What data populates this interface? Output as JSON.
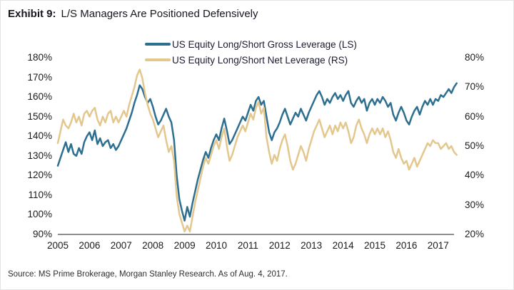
{
  "title": {
    "exhibit": "Exhibit 9:",
    "text": "L/S Managers Are Positioned Defensively"
  },
  "source": {
    "text": "Source: MS Prime Brokerage, Morgan Stanley Research. As of Aug. 4, 2017."
  },
  "colors": {
    "axis_line": "#4a4a4a",
    "gross_line": "#2d6f91",
    "net_line": "#e3c78d"
  },
  "chart_data": {
    "type": "line",
    "title": "L/S Managers Are Positioned Defensively",
    "x_start_year": 2005,
    "points_per_year": 12,
    "x_tick_labels": [
      "2005",
      "2006",
      "2007",
      "2008",
      "2009",
      "2010",
      "2011",
      "2012",
      "2013",
      "2014",
      "2015",
      "2016",
      "2017"
    ],
    "left_axis": {
      "label": "",
      "min": 90,
      "max": 180,
      "ticks": [
        "180%",
        "170%",
        "160%",
        "150%",
        "140%",
        "130%",
        "120%",
        "110%",
        "100%",
        "90%"
      ]
    },
    "right_axis": {
      "label": "",
      "min": 20,
      "max": 80,
      "ticks": [
        "80%",
        "70%",
        "60%",
        "50%",
        "40%",
        "30%",
        "20%"
      ]
    },
    "grid": "off",
    "legend_position": "top-center",
    "series": [
      {
        "name": "US Equity Long/Short Gross Leverage (LS)",
        "axis": "left",
        "color": "#2d6f91",
        "values": [
          125,
          129,
          133,
          137,
          132,
          136,
          131,
          130,
          134,
          131,
          137,
          140,
          142,
          138,
          143,
          136,
          139,
          135,
          137,
          138,
          134,
          136,
          133,
          135,
          138,
          141,
          144,
          148,
          152,
          157,
          161,
          166,
          164,
          160,
          157,
          159,
          155,
          150,
          146,
          148,
          151,
          154,
          150,
          147,
          138,
          120,
          108,
          102,
          97,
          104,
          99,
          106,
          112,
          118,
          123,
          128,
          132,
          129,
          134,
          138,
          141,
          138,
          144,
          149,
          143,
          136,
          138,
          141,
          144,
          147,
          150,
          148,
          152,
          156,
          153,
          158,
          160,
          156,
          158,
          150,
          142,
          138,
          142,
          144,
          147,
          151,
          154,
          150,
          146,
          149,
          152,
          150,
          154,
          151,
          148,
          152,
          155,
          158,
          161,
          163,
          160,
          156,
          159,
          157,
          160,
          162,
          159,
          161,
          158,
          161,
          163,
          157,
          155,
          158,
          160,
          157,
          159,
          153,
          157,
          159,
          156,
          159,
          157,
          160,
          158,
          155,
          157,
          151,
          148,
          152,
          155,
          152,
          148,
          146,
          150,
          153,
          155,
          151,
          155,
          158,
          156,
          159,
          156,
          159,
          158,
          161,
          160,
          162,
          164,
          162,
          165,
          167
        ]
      },
      {
        "name": "US Equity Long/Short Net Leverage (RS)",
        "axis": "right",
        "color": "#e3c78d",
        "values": [
          51,
          55,
          59,
          57,
          56,
          58,
          61,
          58,
          60,
          57,
          61,
          62,
          60,
          62,
          63,
          59,
          57,
          60,
          58,
          61,
          62,
          58,
          60,
          58,
          60,
          62,
          60,
          64,
          67,
          70,
          74,
          76,
          73,
          68,
          64,
          61,
          59,
          56,
          53,
          55,
          57,
          52,
          48,
          50,
          45,
          33,
          27,
          24,
          21,
          23,
          21,
          26,
          31,
          35,
          39,
          43,
          46,
          44,
          47,
          50,
          52,
          49,
          53,
          56,
          50,
          45,
          47,
          50,
          53,
          55,
          57,
          55,
          58,
          61,
          59,
          63,
          65,
          61,
          63,
          53,
          48,
          44,
          47,
          45,
          49,
          52,
          54,
          50,
          45,
          42,
          44,
          47,
          50,
          48,
          45,
          49,
          52,
          55,
          57,
          59,
          56,
          53,
          55,
          57,
          54,
          57,
          55,
          58,
          56,
          58,
          55,
          51,
          53,
          57,
          59,
          56,
          54,
          51,
          54,
          56,
          54,
          56,
          54,
          56,
          53,
          55,
          52,
          48,
          46,
          49,
          46,
          44,
          45,
          42,
          44,
          46,
          43,
          45,
          47,
          49,
          51,
          50,
          52,
          51,
          51,
          49,
          50,
          51,
          49,
          50,
          48,
          47
        ]
      }
    ]
  }
}
